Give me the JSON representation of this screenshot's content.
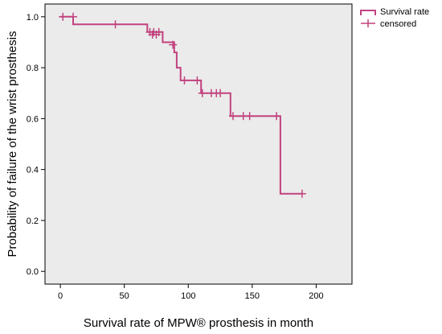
{
  "colors": {
    "plot_background": "#ebebeb",
    "series": "#c2427f",
    "axis": "#000000"
  },
  "chart_data": {
    "type": "line",
    "subtype": "kaplan-meier step",
    "xlabel": "Survival rate of MPW® prosthesis in month",
    "ylabel": "Probability of failure of the wrist prosthesis",
    "xlim": [
      -12,
      228
    ],
    "ylim": [
      -0.05,
      1.05
    ],
    "xticks": [
      0,
      50,
      100,
      150,
      200
    ],
    "xtick_labels": [
      "0",
      "50",
      "100",
      "150",
      "200"
    ],
    "yticks": [
      0.0,
      0.2,
      0.4,
      0.6,
      0.8,
      1.0
    ],
    "ytick_labels": [
      "0.0",
      "0.2",
      "0.4",
      "0.6",
      "0.8",
      "1.0"
    ],
    "grid": false,
    "legend": {
      "position": "right-top",
      "entries": [
        {
          "label": "Survival rate",
          "marker": "step"
        },
        {
          "label": "censored",
          "marker": "plus"
        }
      ]
    },
    "series": [
      {
        "name": "Survival rate",
        "step_points": [
          [
            0,
            1.0
          ],
          [
            10,
            1.0
          ],
          [
            10,
            0.97
          ],
          [
            68,
            0.97
          ],
          [
            68,
            0.94
          ],
          [
            80,
            0.94
          ],
          [
            80,
            0.9
          ],
          [
            89,
            0.9
          ],
          [
            89,
            0.86
          ],
          [
            91,
            0.86
          ],
          [
            91,
            0.8
          ],
          [
            94,
            0.8
          ],
          [
            94,
            0.75
          ],
          [
            110,
            0.75
          ],
          [
            110,
            0.7
          ],
          [
            133,
            0.7
          ],
          [
            133,
            0.61
          ],
          [
            172,
            0.61
          ],
          [
            172,
            0.305
          ],
          [
            189,
            0.305
          ]
        ]
      },
      {
        "name": "censored",
        "points": [
          [
            2,
            1.0
          ],
          [
            10,
            1.0
          ],
          [
            43,
            0.97
          ],
          [
            70,
            0.94
          ],
          [
            72,
            0.93
          ],
          [
            73,
            0.94
          ],
          [
            75,
            0.93
          ],
          [
            77,
            0.94
          ],
          [
            88,
            0.89
          ],
          [
            97,
            0.75
          ],
          [
            107,
            0.75
          ],
          [
            111,
            0.7
          ],
          [
            118,
            0.7
          ],
          [
            122,
            0.7
          ],
          [
            125,
            0.7
          ],
          [
            135,
            0.61
          ],
          [
            143,
            0.61
          ],
          [
            148,
            0.61
          ],
          [
            169,
            0.61
          ],
          [
            189,
            0.305
          ]
        ]
      }
    ]
  }
}
